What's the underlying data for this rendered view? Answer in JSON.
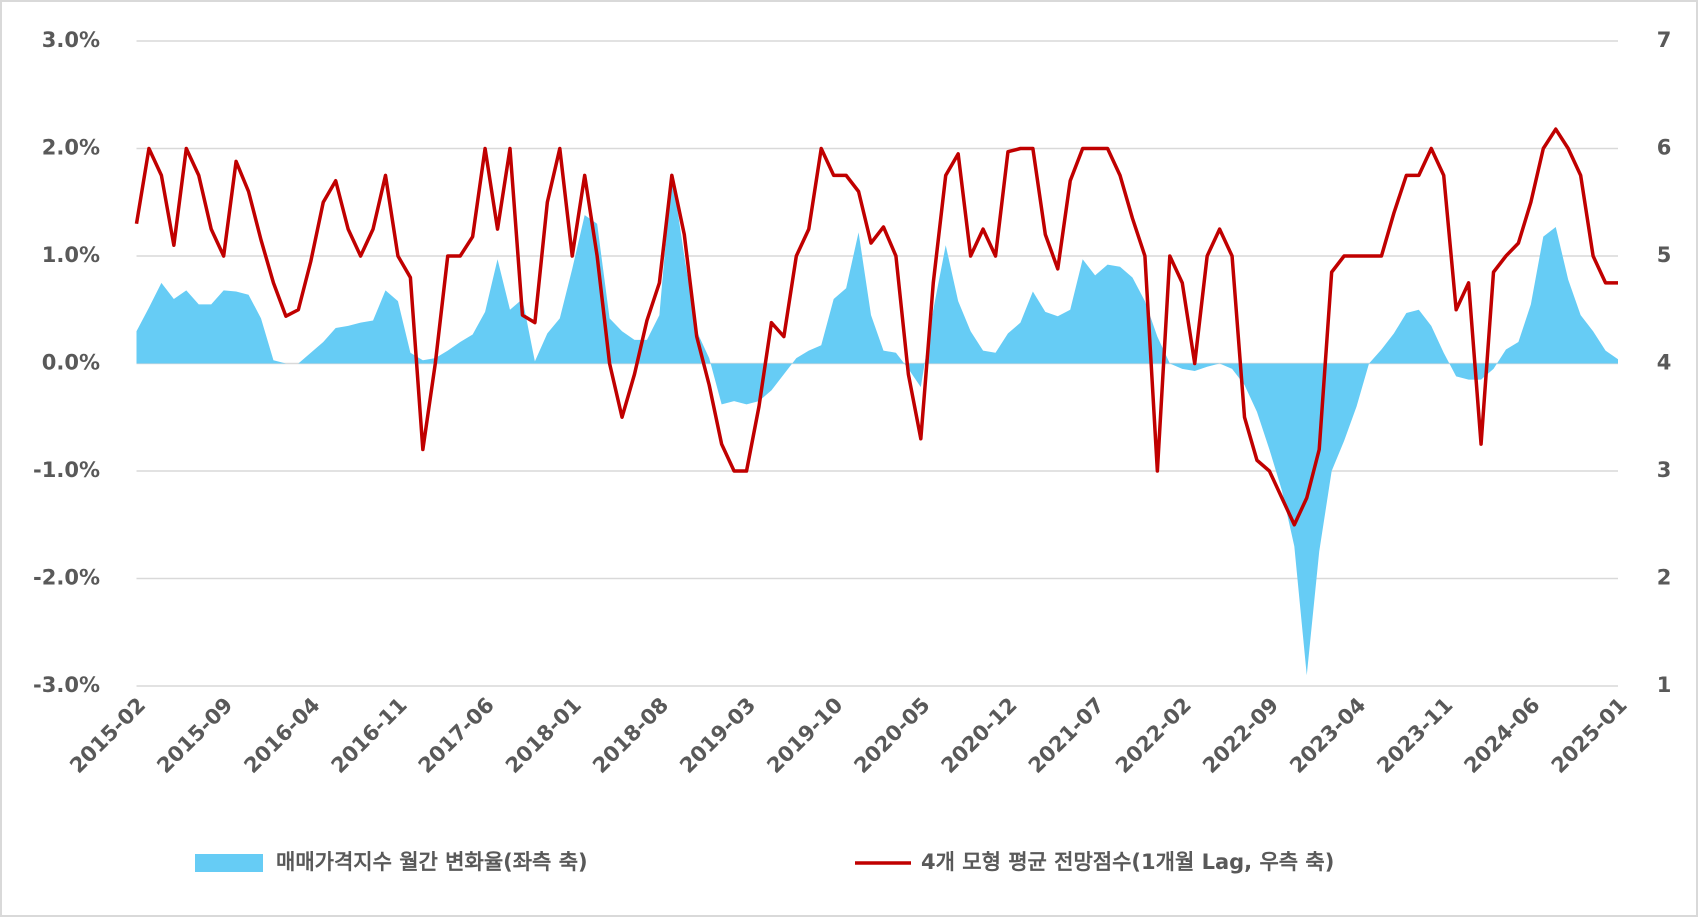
{
  "chart_data": {
    "type": "combo",
    "categories": [
      "2015-02",
      null,
      null,
      null,
      null,
      null,
      null,
      "2015-09",
      null,
      null,
      null,
      null,
      null,
      null,
      "2016-04",
      null,
      null,
      null,
      null,
      null,
      null,
      "2016-11",
      null,
      null,
      null,
      null,
      null,
      null,
      "2017-06",
      null,
      null,
      null,
      null,
      null,
      null,
      "2018-01",
      null,
      null,
      null,
      null,
      null,
      null,
      "2018-08",
      null,
      null,
      null,
      null,
      null,
      null,
      "2019-03",
      null,
      null,
      null,
      null,
      null,
      null,
      "2019-10",
      null,
      null,
      null,
      null,
      null,
      null,
      "2020-05",
      null,
      null,
      null,
      null,
      null,
      null,
      "2020-12",
      null,
      null,
      null,
      null,
      null,
      null,
      "2021-07",
      null,
      null,
      null,
      null,
      null,
      null,
      "2022-02",
      null,
      null,
      null,
      null,
      null,
      null,
      "2022-09",
      null,
      null,
      null,
      null,
      null,
      null,
      "2023-04",
      null,
      null,
      null,
      null,
      null,
      null,
      "2023-11",
      null,
      null,
      null,
      null,
      null,
      null,
      "2024-06",
      null,
      null,
      null,
      null,
      null,
      null,
      "2025-01"
    ],
    "series": [
      {
        "name": "매매가격지수 월간 변화율(좌측 축)",
        "type": "area",
        "color": "#66ccf5",
        "values": [
          0.3,
          0.52,
          0.75,
          0.6,
          0.68,
          0.55,
          0.55,
          0.68,
          0.67,
          0.64,
          0.42,
          0.03,
          0.0,
          0.0,
          0.1,
          0.2,
          0.33,
          0.35,
          0.38,
          0.4,
          0.68,
          0.58,
          0.1,
          0.03,
          0.05,
          0.12,
          0.2,
          0.27,
          0.48,
          0.97,
          0.5,
          0.6,
          0.02,
          0.28,
          0.42,
          0.88,
          1.38,
          1.3,
          0.42,
          0.3,
          0.22,
          0.22,
          0.45,
          1.78,
          1.0,
          0.3,
          0.05,
          -0.38,
          -0.35,
          -0.38,
          -0.35,
          -0.25,
          -0.1,
          0.05,
          0.12,
          0.17,
          0.6,
          0.7,
          1.22,
          0.45,
          0.12,
          0.1,
          -0.05,
          -0.22,
          0.5,
          1.1,
          0.58,
          0.3,
          0.12,
          0.1,
          0.28,
          0.38,
          0.67,
          0.48,
          0.44,
          0.5,
          0.97,
          0.82,
          0.92,
          0.9,
          0.8,
          0.58,
          0.25,
          0.0,
          -0.05,
          -0.07,
          -0.03,
          0.0,
          -0.05,
          -0.2,
          -0.45,
          -0.8,
          -1.18,
          -1.7,
          -2.9,
          -1.75,
          -1.0,
          -0.72,
          -0.4,
          0.0,
          0.13,
          0.28,
          0.47,
          0.5,
          0.35,
          0.1,
          -0.12,
          -0.15,
          -0.15,
          -0.05,
          0.13,
          0.2,
          0.55,
          1.18,
          1.27,
          0.78,
          0.45,
          0.3,
          0.12,
          0.04
        ]
      },
      {
        "name": "4개 모형 평균 전망점수(1개월 Lag, 우측 축)",
        "type": "line",
        "axis": "y2",
        "color": "#c00000",
        "values": [
          5.3,
          6.0,
          5.75,
          5.1,
          6.0,
          5.75,
          5.25,
          5.0,
          5.88,
          5.6,
          5.15,
          4.75,
          4.44,
          4.5,
          4.95,
          5.5,
          5.7,
          5.25,
          5.0,
          5.25,
          5.75,
          5.0,
          4.8,
          3.2,
          4.0,
          5.0,
          5.0,
          5.18,
          6.0,
          5.25,
          6.0,
          4.45,
          4.38,
          5.5,
          6.0,
          5.0,
          5.75,
          5.0,
          4.0,
          3.5,
          3.9,
          4.4,
          4.75,
          5.75,
          5.2,
          4.25,
          3.8,
          3.25,
          3.0,
          3.0,
          3.6,
          4.38,
          4.25,
          5.0,
          5.25,
          6.0,
          5.75,
          5.75,
          5.6,
          5.12,
          5.27,
          5.0,
          3.9,
          3.3,
          4.75,
          5.75,
          5.95,
          5.0,
          5.25,
          5.0,
          5.97,
          6.0,
          6.0,
          5.2,
          4.88,
          5.7,
          6.0,
          6.0,
          6.0,
          5.75,
          5.35,
          5.0,
          3.0,
          5.0,
          4.75,
          4.0,
          5.0,
          5.25,
          5.0,
          3.5,
          3.1,
          3.0,
          2.75,
          2.5,
          2.75,
          3.2,
          4.85,
          5.0,
          5.0,
          5.0,
          5.0,
          5.4,
          5.75,
          5.75,
          6.0,
          5.75,
          4.5,
          4.75,
          3.25,
          4.85,
          5.0,
          5.12,
          5.5,
          6.0,
          6.18,
          6.0,
          5.75,
          5.0,
          4.75,
          4.75
        ]
      }
    ],
    "ylim": [
      -3,
      3
    ],
    "yticks": [
      {
        "value": -3,
        "label": "-3.0%"
      },
      {
        "value": -2,
        "label": "-2.0%"
      },
      {
        "value": -1,
        "label": "-1.0%"
      },
      {
        "value": 0,
        "label": "0.0%"
      },
      {
        "value": 1,
        "label": "1.0%"
      },
      {
        "value": 2,
        "label": "2.0%"
      },
      {
        "value": 3,
        "label": "3.0%"
      }
    ],
    "y2lim": [
      1,
      7
    ],
    "y2ticks": [
      1,
      2,
      3,
      4,
      5,
      6,
      7
    ],
    "grid": true,
    "legend": "bottom"
  }
}
